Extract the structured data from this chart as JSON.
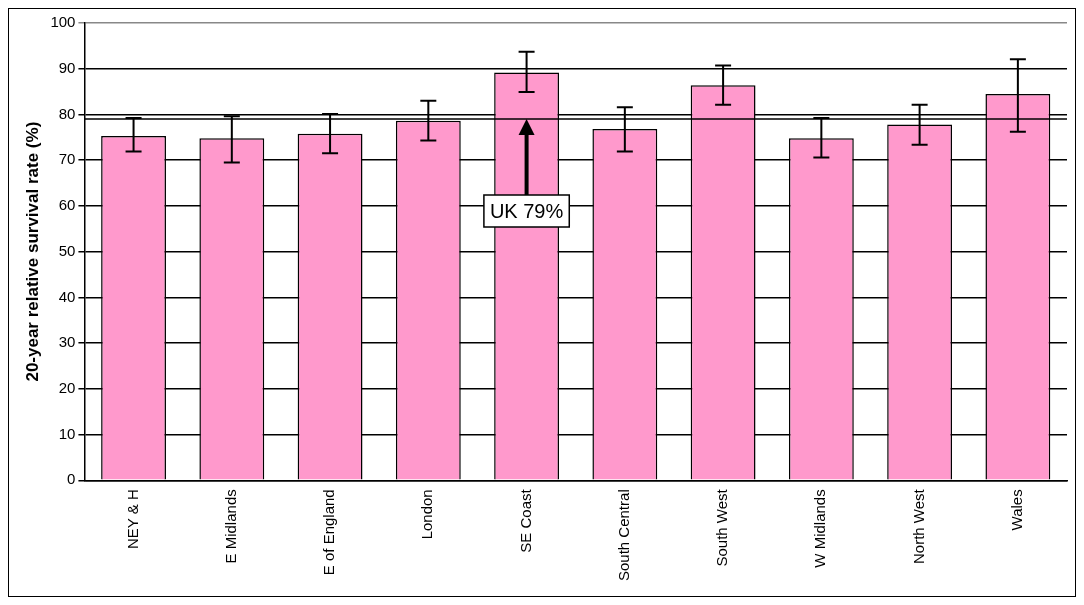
{
  "chart_data": {
    "type": "bar",
    "ylabel": "20-year relative survival rate (%)",
    "categories": [
      "NEY & H",
      "E Midlands",
      "E of England",
      "London",
      "SE Coast",
      "South Central",
      "South West",
      "W Midlands",
      "North West",
      "Wales"
    ],
    "values": [
      75.3,
      74.8,
      75.8,
      78.6,
      89.2,
      76.8,
      86.4,
      74.8,
      77.8,
      84.5
    ],
    "errors": [
      [
        71.9,
        79.2
      ],
      [
        69.5,
        79.6
      ],
      [
        71.5,
        80.1
      ],
      [
        74.3,
        83
      ],
      [
        84.9,
        93.7
      ],
      [
        71.9,
        81.6
      ],
      [
        82.1,
        90.7
      ],
      [
        70.6,
        79.2
      ],
      [
        73.4,
        82.1
      ],
      [
        76.2,
        92.1
      ]
    ],
    "color": "#ff99cc",
    "ylim": [
      0,
      100
    ],
    "yticks": [
      0,
      10,
      20,
      30,
      40,
      50,
      60,
      70,
      80,
      90,
      100
    ],
    "grid": "y",
    "ref_lines": [
      {
        "axis": "y",
        "value": 79,
        "color": "#000000",
        "label": "UK 79%"
      }
    ]
  }
}
